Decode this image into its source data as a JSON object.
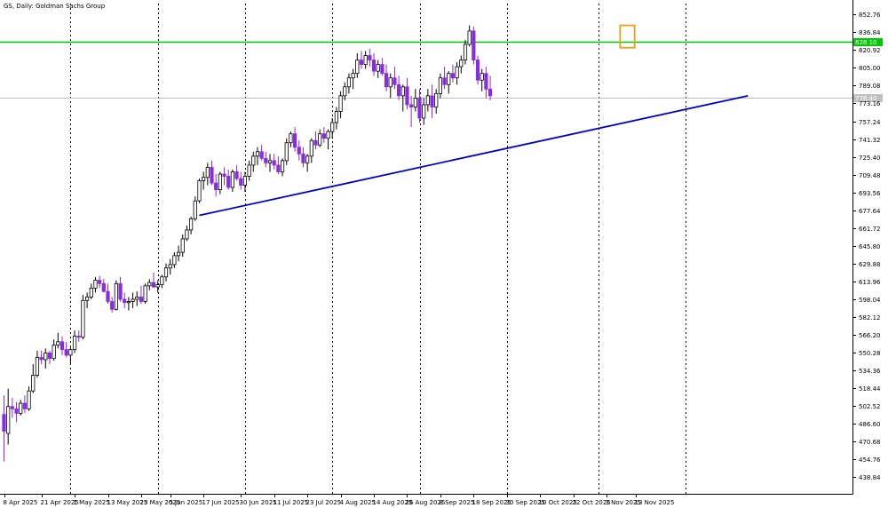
{
  "chart_title": "GS, Daily:  Goldman Sachs Group",
  "colors": {
    "background": "#ffffff",
    "bull_body": "#ffffff",
    "bull_outline": "#000000",
    "bear_body": "#8a2be2",
    "bear_outline": "#8a2be2",
    "grid": "#000000",
    "axis": "#000000",
    "resistance": "#00c800",
    "trendline": "#0000cd",
    "current_price_line": "#c0c0c0",
    "highlight_box": "#f39c12",
    "badge_text": "#ffffff"
  },
  "chart_data": {
    "type": "candlestick",
    "title": "GS, Daily:  Goldman Sachs Group",
    "ylim": [
      424.0,
      862.5
    ],
    "y_ticks": [
      "852.76",
      "836.84",
      "820.92",
      "805.00",
      "789.08",
      "773.16",
      "757.24",
      "741.32",
      "725.40",
      "709.48",
      "693.56",
      "677.64",
      "661.72",
      "645.80",
      "629.88",
      "613.96",
      "598.04",
      "582.12",
      "566.20",
      "550.28",
      "534.36",
      "518.44",
      "502.52",
      "486.60",
      "470.68",
      "454.76",
      "438.84"
    ],
    "x_labels": [
      "8 Apr 2025",
      "21 Apr 2025",
      "1 May 2025",
      "13 May 2025",
      "23 May 2025",
      "5 Jun 2025",
      "17 Jun 2025",
      "30 Jun 2025",
      "11 Jul 2025",
      "23 Jul 2025",
      "4 Aug 2025",
      "14 Aug 2025",
      "26 Aug 2025",
      "8 Sep 2025",
      "18 Sep 2025",
      "30 Sep 2025",
      "10 Oct 2025",
      "22 Oct 2025",
      "3 Nov 2025",
      "13 Nov 2025"
    ],
    "x_label_indices": [
      0,
      9,
      17,
      25,
      33,
      40,
      48,
      57,
      65,
      73,
      81,
      89,
      97,
      105,
      113,
      121,
      129,
      137,
      145,
      152
    ],
    "grid_bar_indices": [
      16,
      37,
      58,
      79,
      100,
      121,
      143,
      164
    ],
    "levels": {
      "resistance": 828.1,
      "resistance_label": "828.10",
      "current_price": 778.4,
      "current_price_label": "778.40"
    },
    "trendline": {
      "from": {
        "bar": 47,
        "price": 673.0
      },
      "to": {
        "bar": 179,
        "price": 780.0
      }
    },
    "highlight": {
      "from_bar": 149,
      "to_bar": 151,
      "low": 823.0,
      "high": 843.0
    },
    "ohlc": [
      [
        495,
        512,
        453,
        480
      ],
      [
        478,
        518,
        468,
        502
      ],
      [
        502,
        510,
        492,
        500
      ],
      [
        500,
        506,
        488,
        496
      ],
      [
        496,
        508,
        494,
        505
      ],
      [
        505,
        512,
        496,
        500
      ],
      [
        500,
        520,
        498,
        516
      ],
      [
        516,
        540,
        514,
        530
      ],
      [
        530,
        552,
        528,
        546
      ],
      [
        546,
        552,
        540,
        544
      ],
      [
        544,
        554,
        536,
        550
      ],
      [
        550,
        552,
        540,
        545
      ],
      [
        545,
        562,
        543,
        557
      ],
      [
        557,
        568,
        554,
        560
      ],
      [
        560,
        565,
        548,
        553
      ],
      [
        553,
        560,
        546,
        548
      ],
      [
        548,
        555,
        540,
        553
      ],
      [
        553,
        570,
        550,
        565
      ],
      [
        565,
        570,
        560,
        564
      ],
      [
        564,
        602,
        562,
        597
      ],
      [
        597,
        604,
        590,
        600
      ],
      [
        600,
        612,
        598,
        608
      ],
      [
        608,
        618,
        604,
        615
      ],
      [
        615,
        619,
        608,
        612
      ],
      [
        612,
        616,
        604,
        605
      ],
      [
        605,
        612,
        594,
        596
      ],
      [
        596,
        600,
        586,
        589
      ],
      [
        589,
        615,
        588,
        612
      ],
      [
        612,
        618,
        596,
        598
      ],
      [
        598,
        604,
        590,
        595
      ],
      [
        595,
        600,
        588,
        596
      ],
      [
        596,
        604,
        590,
        598
      ],
      [
        598,
        605,
        592,
        600
      ],
      [
        600,
        610,
        594,
        596
      ],
      [
        596,
        612,
        594,
        610
      ],
      [
        610,
        616,
        606,
        613
      ],
      [
        613,
        622,
        608,
        609
      ],
      [
        609,
        615,
        604,
        611
      ],
      [
        611,
        620,
        608,
        618
      ],
      [
        618,
        630,
        614,
        626
      ],
      [
        626,
        634,
        620,
        629
      ],
      [
        629,
        640,
        626,
        637
      ],
      [
        637,
        646,
        632,
        640
      ],
      [
        640,
        656,
        636,
        652
      ],
      [
        652,
        664,
        650,
        660
      ],
      [
        660,
        672,
        656,
        670
      ],
      [
        670,
        690,
        668,
        686
      ],
      [
        686,
        706,
        684,
        704
      ],
      [
        704,
        712,
        696,
        707
      ],
      [
        707,
        720,
        700,
        716
      ],
      [
        716,
        722,
        700,
        702
      ],
      [
        702,
        710,
        690,
        696
      ],
      [
        696,
        712,
        692,
        710
      ],
      [
        710,
        716,
        700,
        708
      ],
      [
        708,
        714,
        696,
        698
      ],
      [
        698,
        714,
        694,
        712
      ],
      [
        712,
        718,
        704,
        706
      ],
      [
        706,
        712,
        696,
        700
      ],
      [
        700,
        712,
        694,
        708
      ],
      [
        708,
        722,
        704,
        718
      ],
      [
        718,
        730,
        712,
        726
      ],
      [
        726,
        734,
        718,
        730
      ],
      [
        730,
        736,
        722,
        724
      ],
      [
        724,
        730,
        716,
        720
      ],
      [
        720,
        728,
        712,
        722
      ],
      [
        722,
        728,
        714,
        718
      ],
      [
        718,
        726,
        710,
        712
      ],
      [
        712,
        724,
        708,
        722
      ],
      [
        722,
        742,
        718,
        738
      ],
      [
        738,
        748,
        734,
        746
      ],
      [
        746,
        752,
        730,
        734
      ],
      [
        734,
        740,
        722,
        728
      ],
      [
        728,
        734,
        716,
        720
      ],
      [
        720,
        728,
        712,
        726
      ],
      [
        726,
        742,
        720,
        740
      ],
      [
        740,
        748,
        732,
        736
      ],
      [
        736,
        750,
        734,
        746
      ],
      [
        746,
        752,
        738,
        742
      ],
      [
        742,
        750,
        732,
        748
      ],
      [
        748,
        760,
        742,
        756
      ],
      [
        756,
        770,
        750,
        766
      ],
      [
        766,
        784,
        760,
        780
      ],
      [
        780,
        792,
        776,
        788
      ],
      [
        788,
        800,
        782,
        796
      ],
      [
        796,
        804,
        786,
        800
      ],
      [
        800,
        818,
        796,
        812
      ],
      [
        812,
        820,
        804,
        808
      ],
      [
        808,
        820,
        804,
        816
      ],
      [
        816,
        822,
        806,
        812
      ],
      [
        812,
        818,
        798,
        802
      ],
      [
        802,
        812,
        796,
        808
      ],
      [
        808,
        814,
        798,
        800
      ],
      [
        800,
        808,
        784,
        788
      ],
      [
        788,
        800,
        778,
        796
      ],
      [
        796,
        806,
        786,
        790
      ],
      [
        790,
        798,
        776,
        780
      ],
      [
        780,
        790,
        766,
        788
      ],
      [
        788,
        796,
        768,
        772
      ],
      [
        772,
        780,
        752,
        770
      ],
      [
        770,
        786,
        766,
        778
      ],
      [
        778,
        786,
        756,
        760
      ],
      [
        760,
        778,
        754,
        772
      ],
      [
        772,
        786,
        766,
        780
      ],
      [
        780,
        790,
        760,
        770
      ],
      [
        770,
        786,
        764,
        782
      ],
      [
        782,
        800,
        778,
        796
      ],
      [
        796,
        806,
        786,
        790
      ],
      [
        790,
        802,
        782,
        800
      ],
      [
        800,
        808,
        792,
        796
      ],
      [
        796,
        810,
        790,
        806
      ],
      [
        806,
        816,
        800,
        812
      ],
      [
        812,
        830,
        808,
        826
      ],
      [
        826,
        843,
        824,
        838
      ],
      [
        838,
        842,
        808,
        812
      ],
      [
        812,
        816,
        790,
        794
      ],
      [
        794,
        804,
        784,
        800
      ],
      [
        800,
        806,
        778,
        786
      ],
      [
        786,
        798,
        776,
        780
      ]
    ]
  }
}
